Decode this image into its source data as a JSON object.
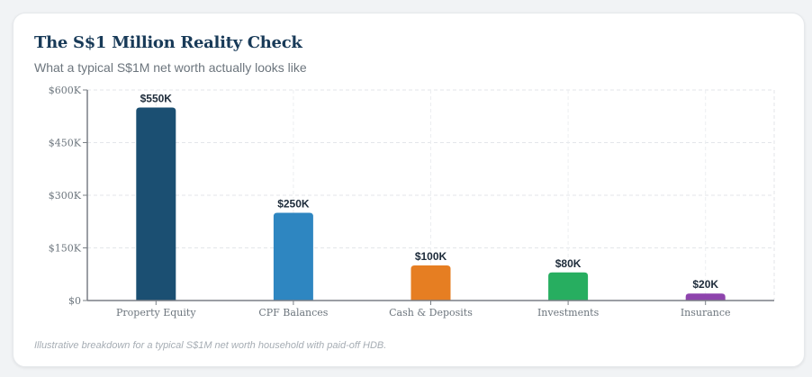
{
  "header": {
    "title": "The S$1 Million Reality Check",
    "subtitle": "What a typical S$1M net worth actually looks like"
  },
  "footnote": "Illustrative breakdown for a typical S$1M net worth household with paid-off HDB.",
  "chart_data": {
    "type": "bar",
    "title": "The S$1 Million Reality Check",
    "subtitle": "What a typical S$1M net worth actually looks like",
    "xlabel": "",
    "ylabel": "",
    "categories": [
      "Property Equity",
      "CPF Balances",
      "Cash & Deposits",
      "Investments",
      "Insurance"
    ],
    "values": [
      550000,
      250000,
      100000,
      80000,
      20000
    ],
    "value_labels": [
      "$550K",
      "$250K",
      "$100K",
      "$80K",
      "$20K"
    ],
    "colors": [
      "#1b4f72",
      "#2e86c1",
      "#e67e22",
      "#27ae60",
      "#8e44ad"
    ],
    "ylim": [
      0,
      600000
    ],
    "yticks": [
      0,
      150000,
      300000,
      450000,
      600000
    ],
    "ytick_labels": [
      "$0",
      "$150K",
      "$300K",
      "$450K",
      "$600K"
    ],
    "grid": true,
    "legend": "none"
  }
}
